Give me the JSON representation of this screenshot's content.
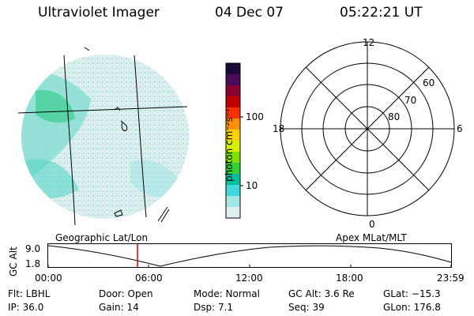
{
  "header": {
    "instrument": "Ultraviolet Imager",
    "date": "04 Dec 07",
    "time": "05:22:21 UT"
  },
  "colorbar": {
    "unit_label": "photon cm⁻²s⁻¹",
    "ticks": [
      "100",
      "10"
    ],
    "colors": [
      "#1a0a3a",
      "#4a0a5a",
      "#8a0030",
      "#c00000",
      "#ff3000",
      "#ff9000",
      "#ffd000",
      "#d8f000",
      "#80e000",
      "#30d030",
      "#00c0a0",
      "#40d8d8",
      "#a0e8e8",
      "#e0f0f0"
    ]
  },
  "polar_plot": {
    "mlt_labels": [
      "12",
      "18",
      "6",
      "0"
    ],
    "lat_labels": [
      "60",
      "70",
      "80"
    ]
  },
  "timeline": {
    "left_label": "Geographic Lat/Lon",
    "right_label": "Apex MLat/MLT",
    "ylabel": "GC Alt",
    "y_ticks": [
      "9.0",
      "1.8"
    ],
    "x_ticks": [
      "00:00",
      "06:00",
      "12:00",
      "18:00",
      "23:59"
    ],
    "current_time_marker": "05:22",
    "marker_color": "#e00000"
  },
  "status": {
    "flt": "Flt: LBHL",
    "door": "Door: Open",
    "mode": "Mode: Normal",
    "gc_alt": "GC Alt: 3.6 Re",
    "glat": "GLat: −15.3",
    "ip": "IP: 36.0",
    "gain": "Gain: 14",
    "dsp": "Dsp:     7.1",
    "seq": "Seq: 39",
    "glon": "GLon: 176.8"
  }
}
